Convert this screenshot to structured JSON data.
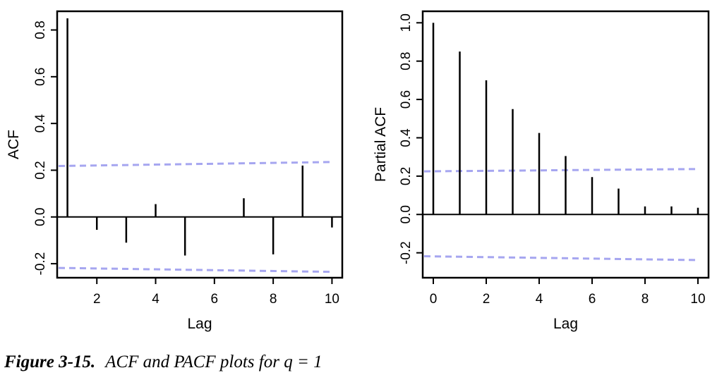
{
  "chart_data": [
    {
      "type": "bar",
      "xlabel": "Lag",
      "ylabel": "ACF",
      "xlim": [
        0.65,
        10.35
      ],
      "ylim": [
        -0.26,
        0.88
      ],
      "x_ticks": [
        2,
        4,
        6,
        8,
        10
      ],
      "y_ticks": [
        -0.2,
        0.0,
        0.2,
        0.4,
        0.6,
        0.8
      ],
      "y_tick_labels": [
        "-0.2",
        "0.0",
        "0.2",
        "0.4",
        "0.6",
        "0.8"
      ],
      "x": [
        1,
        2,
        3,
        4,
        5,
        6,
        7,
        8,
        9,
        10
      ],
      "values": [
        0.85,
        -0.055,
        -0.11,
        0.055,
        -0.165,
        0.0,
        0.08,
        -0.16,
        0.22,
        -0.045
      ],
      "confidence_band": {
        "upper": [
          0.218,
          0.235
        ],
        "lower": [
          -0.218,
          -0.235
        ],
        "color": "#a6a6f0"
      },
      "grid": false
    },
    {
      "type": "bar",
      "xlabel": "Lag",
      "ylabel": "Partial ACF",
      "xlim": [
        -0.4,
        10.4
      ],
      "ylim": [
        -0.33,
        1.06
      ],
      "x_ticks": [
        0,
        2,
        4,
        6,
        8,
        10
      ],
      "y_ticks": [
        -0.2,
        0.0,
        0.2,
        0.4,
        0.6,
        0.8,
        1.0
      ],
      "y_tick_labels": [
        "-0.2",
        "0.0",
        "0.2",
        "0.4",
        "0.6",
        "0.8",
        "1.0"
      ],
      "x": [
        0,
        1,
        2,
        3,
        4,
        5,
        6,
        7,
        8,
        9,
        10
      ],
      "values": [
        1.0,
        0.85,
        0.7,
        0.55,
        0.425,
        0.305,
        0.195,
        0.135,
        0.042,
        0.042,
        0.035
      ],
      "confidence_band": {
        "upper": [
          0.225,
          0.237
        ],
        "lower": [
          -0.218,
          -0.238
        ],
        "color": "#a6a6f0"
      },
      "grid": false
    }
  ],
  "caption": {
    "figure_number": "Figure 3-15.",
    "text": "ACF and PACF plots for q = 1"
  }
}
